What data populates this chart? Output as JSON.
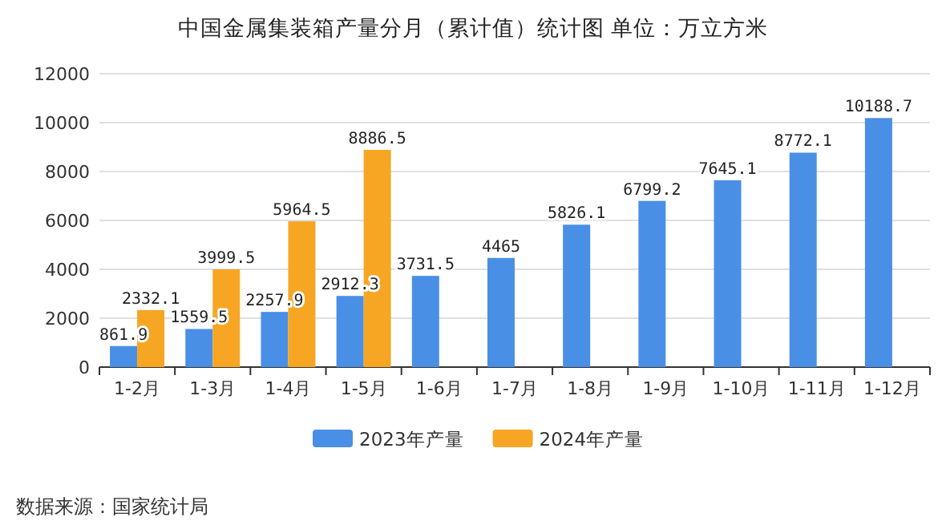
{
  "chart_data": {
    "type": "bar",
    "title": "中国金属集装箱产量分月（累计值）统计图 单位：万立方米",
    "categories": [
      "1-2月",
      "1-3月",
      "1-4月",
      "1-5月",
      "1-6月",
      "1-7月",
      "1-8月",
      "1-9月",
      "1-10月",
      "1-11月",
      "1-12月"
    ],
    "series": [
      {
        "name": "2023年产量",
        "color": "#4a8fe6",
        "values": [
          861.9,
          1559.5,
          2257.9,
          2912.3,
          3731.5,
          4465,
          5826.1,
          6799.2,
          7645.1,
          8772.1,
          10188.7
        ]
      },
      {
        "name": "2024年产量",
        "color": "#f6a623",
        "values": [
          2332.1,
          3999.5,
          5964.5,
          8886.5,
          null,
          null,
          null,
          null,
          null,
          null,
          null
        ]
      }
    ],
    "ylim": [
      0,
      12000
    ],
    "yticks": [
      0,
      2000,
      4000,
      6000,
      8000,
      10000,
      12000
    ],
    "grid": "y",
    "legend": "bottom",
    "data_labels": true,
    "annotations": [
      "数据来源：国家统计局"
    ]
  }
}
